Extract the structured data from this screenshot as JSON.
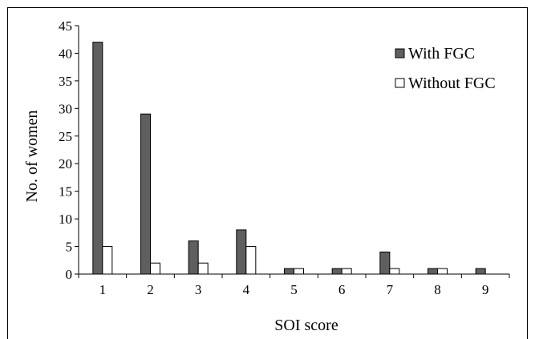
{
  "chart_data": {
    "type": "bar",
    "title": "",
    "xlabel": "SOI score",
    "ylabel": "No. of women",
    "categories": [
      "1",
      "2",
      "3",
      "4",
      "5",
      "6",
      "7",
      "8",
      "9"
    ],
    "ylim": [
      0,
      45
    ],
    "yticks": [
      0,
      5,
      10,
      15,
      20,
      25,
      30,
      35,
      40,
      45
    ],
    "grid": false,
    "legend_position": "top-right",
    "series": [
      {
        "name": "With FGC",
        "color": "#5f5f5f",
        "values": [
          42,
          29,
          6,
          8,
          1,
          1,
          4,
          1,
          1
        ]
      },
      {
        "name": "Without FGC",
        "color": "#ffffff",
        "values": [
          5,
          2,
          2,
          5,
          1,
          1,
          1,
          1,
          0
        ]
      }
    ]
  }
}
